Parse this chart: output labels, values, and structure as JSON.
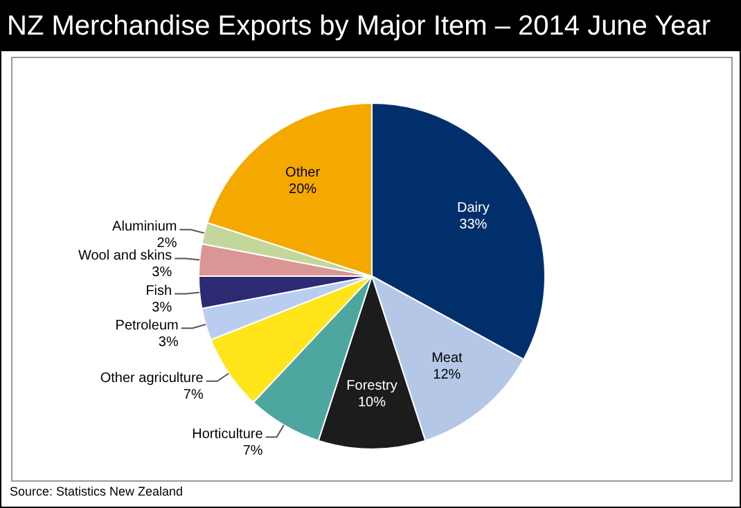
{
  "chart_data": {
    "type": "pie",
    "title": "NZ Merchandise Exports by Major Item – 2014 June Year",
    "categories": [
      "Dairy",
      "Meat",
      "Forestry",
      "Horticulture",
      "Other agriculture",
      "Petroleum",
      "Fish",
      "Wool and skins",
      "Aluminium",
      "Other"
    ],
    "values": [
      33,
      12,
      10,
      7,
      7,
      3,
      3,
      3,
      2,
      20
    ],
    "value_labels": [
      "33%",
      "12%",
      "10%",
      "7%",
      "7%",
      "3%",
      "3%",
      "3%",
      "2%",
      "20%"
    ],
    "colors": [
      "#002f6c",
      "#b4c7e7",
      "#1c1c1c",
      "#4ea6a0",
      "#ffe51a",
      "#b9cdf0",
      "#2b2a72",
      "#d99694",
      "#c4d79b",
      "#f5a800"
    ],
    "legend": false,
    "annotations": [
      "Source: Statistics New Zealand"
    ]
  }
}
